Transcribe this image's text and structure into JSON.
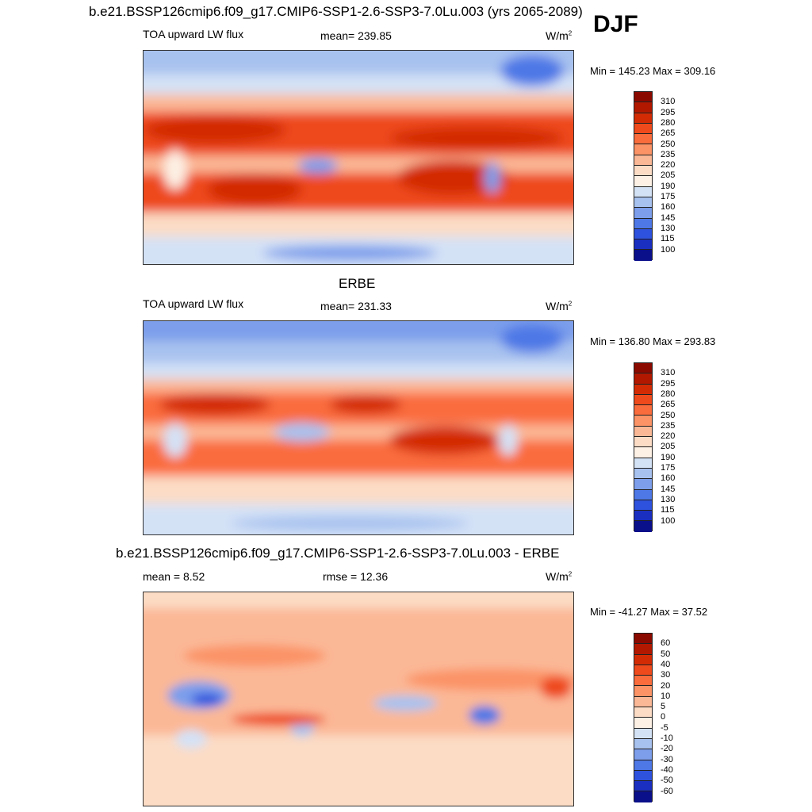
{
  "season": "DJF",
  "panels": [
    {
      "title": "b.e21.BSSP126cmip6.f09_g17.CMIP6-SSP1-2.6-SSP3-7.0Lu.003 (yrs 2065-2089)",
      "left_label": "TOA upward LW flux",
      "mid_label": "mean= 239.85",
      "units": "W/m",
      "units_sup": "2",
      "minmax": "Min = 145.23 Max = 309.16",
      "colorbar_labels": [
        "310",
        "295",
        "280",
        "265",
        "250",
        "235",
        "220",
        "205",
        "190",
        "175",
        "160",
        "145",
        "130",
        "115",
        "100"
      ],
      "colorbar_colors": [
        "#8b0a00",
        "#b21800",
        "#d32c05",
        "#ee4a1c",
        "#fa6c3c",
        "#fb9366",
        "#fbb896",
        "#fcdcc5",
        "#fdf0e4",
        "#d4e2f6",
        "#a8c2ef",
        "#7c9eeb",
        "#4e78e6",
        "#2e52dd",
        "#1a2fc0",
        "#0a0f8a"
      ]
    },
    {
      "title": "ERBE",
      "left_label": "TOA upward LW flux",
      "mid_label": "mean= 231.33",
      "units": "W/m",
      "units_sup": "2",
      "minmax": "Min = 136.80 Max = 293.83",
      "colorbar_labels": [
        "310",
        "295",
        "280",
        "265",
        "250",
        "235",
        "220",
        "205",
        "190",
        "175",
        "160",
        "145",
        "130",
        "115",
        "100"
      ],
      "colorbar_colors": [
        "#8b0a00",
        "#b21800",
        "#d32c05",
        "#ee4a1c",
        "#fa6c3c",
        "#fb9366",
        "#fbb896",
        "#fcdcc5",
        "#fdf0e4",
        "#d4e2f6",
        "#a8c2ef",
        "#7c9eeb",
        "#4e78e6",
        "#2e52dd",
        "#1a2fc0",
        "#0a0f8a"
      ]
    },
    {
      "title": "b.e21.BSSP126cmip6.f09_g17.CMIP6-SSP1-2.6-SSP3-7.0Lu.003 - ERBE",
      "left_label": "mean =   8.52",
      "mid_label": "rmse =  12.36",
      "units": "W/m",
      "units_sup": "2",
      "minmax": "Min = -41.27 Max =  37.52",
      "colorbar_labels": [
        "60",
        "50",
        "40",
        "30",
        "20",
        "10",
        "5",
        "0",
        "-5",
        "-10",
        "-20",
        "-30",
        "-40",
        "-50",
        "-60"
      ],
      "colorbar_colors": [
        "#8b0a00",
        "#b21800",
        "#d32c05",
        "#ee4a1c",
        "#fa6c3c",
        "#fb9366",
        "#fbb896",
        "#fcdcc5",
        "#fdf0e4",
        "#d4e2f6",
        "#a8c2ef",
        "#7c9eeb",
        "#4e78e6",
        "#2e52dd",
        "#1a2fc0",
        "#0a0f8a"
      ]
    }
  ]
}
